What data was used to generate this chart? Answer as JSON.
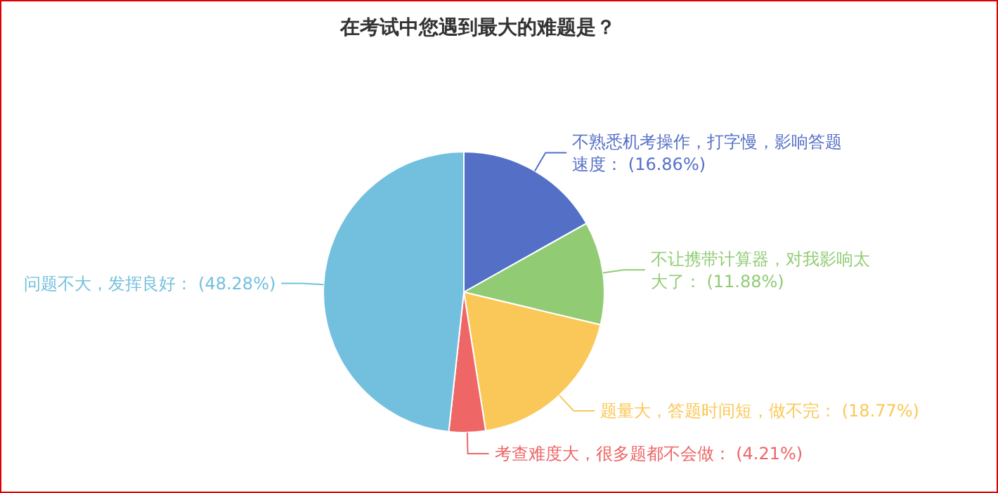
{
  "chart_data": {
    "type": "pie",
    "title": "在考试中您遇到最大的难题是？",
    "categories": [
      "不熟悉机考操作，打字慢，影响答题速度",
      "不让携带计算器，对我影响太大了",
      "题量大，答题时间短，做不完",
      "考查难度大，很多题都不会做",
      "问题不大，发挥良好"
    ],
    "values": [
      16.86,
      11.88,
      18.77,
      4.21,
      48.28
    ],
    "colors": [
      "#5470c6",
      "#91cc75",
      "#fac858",
      "#ee6666",
      "#73c0de"
    ],
    "value_labels": [
      "(16.86%)",
      "(11.88%)",
      "(18.77%)",
      "(4.21%)",
      "(48.28%)"
    ]
  }
}
